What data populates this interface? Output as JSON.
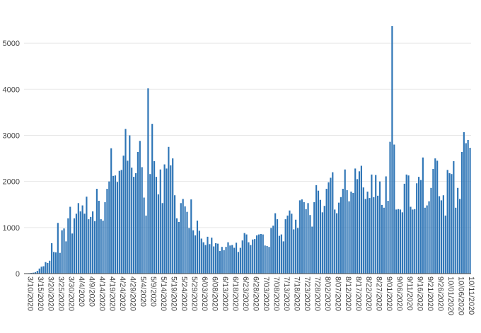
{
  "chart_data": {
    "type": "bar",
    "title": "",
    "xlabel": "",
    "ylabel": "",
    "ylim": [
      0,
      5600
    ],
    "grid": true,
    "bar_color": "#2e75b6",
    "yticks": [
      0,
      1000,
      2000,
      3000,
      4000,
      5000
    ],
    "yticks_labels": [
      "0",
      "1000",
      "2000",
      "3000",
      "4000",
      "5000"
    ],
    "xtick_labels": [
      "3/10/2020",
      "3/15/2020",
      "3/20/2020",
      "3/25/2020",
      "3/30/2020",
      "4/4/2020",
      "4/9/2020",
      "4/14/2020",
      "4/19/2020",
      "4/24/2020",
      "4/29/2020",
      "5/4/2020",
      "5/9/2020",
      "5/14/2020",
      "5/19/2020",
      "5/24/2020",
      "5/29/2020",
      "6/03/2020",
      "6/08/2020",
      "6/13/2020",
      "6/18/2020",
      "6/23/2020",
      "6/28/2020",
      "7/03/2020",
      "7/08/2020",
      "7/13/2020",
      "7/18/2020",
      "7/23/2020",
      "7/28/2020",
      "8/02/2020",
      "8/07/2020",
      "8/12/2020",
      "8/17/2020",
      "8/22/2020",
      "8/27/2020",
      "9/01/2020",
      "9/06/2020",
      "9/11/2020",
      "9/16/2020",
      "9/21/2020",
      "9/26/2020",
      "10/01/2020",
      "10/06/2020",
      "10/11/2020"
    ],
    "xtick_every": 5,
    "start_date": "3/10/2020",
    "values": [
      5,
      8,
      10,
      15,
      20,
      30,
      60,
      110,
      150,
      160,
      250,
      230,
      280,
      660,
      470,
      460,
      1100,
      450,
      940,
      980,
      700,
      1200,
      1450,
      870,
      1200,
      1300,
      1530,
      1350,
      1480,
      1300,
      1670,
      1180,
      1230,
      1350,
      1140,
      1840,
      1580,
      1180,
      1150,
      1550,
      1840,
      2000,
      2720,
      2120,
      2130,
      1990,
      2230,
      2250,
      2560,
      3140,
      2450,
      3000,
      2300,
      2100,
      2180,
      2640,
      2880,
      2310,
      1650,
      1260,
      4020,
      2160,
      3250,
      2440,
      2100,
      1720,
      2260,
      1530,
      2370,
      2280,
      2750,
      2350,
      2500,
      1700,
      1200,
      1120,
      1530,
      1620,
      1460,
      1340,
      990,
      1610,
      940,
      830,
      1150,
      930,
      760,
      680,
      620,
      800,
      640,
      780,
      590,
      660,
      650,
      490,
      580,
      510,
      580,
      680,
      610,
      620,
      560,
      670,
      470,
      560,
      720,
      880,
      850,
      680,
      620,
      740,
      750,
      830,
      850,
      860,
      850,
      610,
      600,
      580,
      990,
      1040,
      1310,
      1180,
      820,
      850,
      700,
      1180,
      1260,
      1370,
      1300,
      960,
      1170,
      990,
      1590,
      1610,
      1550,
      1400,
      1530,
      1270,
      1020,
      1550,
      1920,
      1800,
      1600,
      1330,
      1470,
      1840,
      1980,
      2080,
      2200,
      1390,
      1310,
      1540,
      1660,
      1840,
      2260,
      1810,
      1570,
      1780,
      1750,
      2280,
      2050,
      2220,
      2340,
      1870,
      1620,
      1780,
      1640,
      2150,
      1660,
      2140,
      1690,
      2000,
      1490,
      1430,
      2110,
      1580,
      2860,
      5370,
      2800,
      1390,
      1400,
      1390,
      1330,
      1950,
      2150,
      2130,
      1450,
      1390,
      1400,
      1960,
      2100,
      2030,
      2520,
      1430,
      1480,
      1570,
      1860,
      2270,
      2500,
      2450,
      1680,
      1590,
      1700,
      1260,
      2250,
      2180,
      2160,
      2440,
      1430,
      1860,
      1620,
      2640,
      3070,
      2830,
      2900,
      2730
    ]
  }
}
